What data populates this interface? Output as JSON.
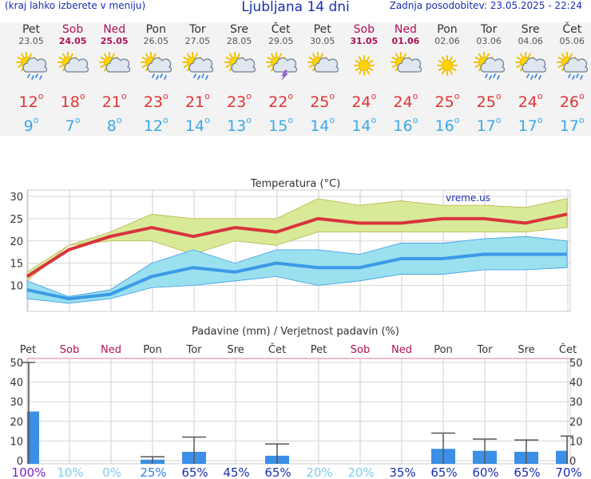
{
  "header": {
    "menu_hint": "(kraj lahko izberete v meniju)",
    "title": "Ljubljana 14 dni",
    "updated": "Zadnja posodobitev: 23.05.2025 - 22:24"
  },
  "colors": {
    "weekday": "#333333",
    "weekend": "#b0105a",
    "tmax": "#e03434",
    "tmin": "#3ca8e8"
  },
  "days": [
    {
      "name": "Pet",
      "date": "23.05",
      "weekend": false,
      "icon": "sun-cloud-rain-icon",
      "tmax": "12",
      "tmin": "9"
    },
    {
      "name": "Sob",
      "date": "24.05",
      "weekend": true,
      "icon": "cloud-sun-icon",
      "tmax": "18",
      "tmin": "7"
    },
    {
      "name": "Ned",
      "date": "25.05",
      "weekend": true,
      "icon": "cloud-sun-icon",
      "tmax": "21",
      "tmin": "8"
    },
    {
      "name": "Pon",
      "date": "26.05",
      "weekend": false,
      "icon": "sun-cloud-rain-icon",
      "tmax": "23",
      "tmin": "12"
    },
    {
      "name": "Tor",
      "date": "27.05",
      "weekend": false,
      "icon": "sun-cloud-rain-icon",
      "tmax": "21",
      "tmin": "14"
    },
    {
      "name": "Sre",
      "date": "28.05",
      "weekend": false,
      "icon": "cloud-sun-icon",
      "tmax": "23",
      "tmin": "13"
    },
    {
      "name": "Čet",
      "date": "29.05",
      "weekend": false,
      "icon": "sun-cloud-storm-icon",
      "tmax": "22",
      "tmin": "15"
    },
    {
      "name": "Pet",
      "date": "30.05",
      "weekend": false,
      "icon": "sun-cloud-icon",
      "tmax": "25",
      "tmin": "14"
    },
    {
      "name": "Sob",
      "date": "31.05",
      "weekend": true,
      "icon": "sun-icon",
      "tmax": "24",
      "tmin": "14"
    },
    {
      "name": "Ned",
      "date": "01.06",
      "weekend": true,
      "icon": "sun-cloud-icon",
      "tmax": "24",
      "tmin": "16"
    },
    {
      "name": "Pon",
      "date": "02.06",
      "weekend": false,
      "icon": "sun-icon",
      "tmax": "25",
      "tmin": "16"
    },
    {
      "name": "Tor",
      "date": "03.06",
      "weekend": false,
      "icon": "sun-cloud-rain-icon",
      "tmax": "25",
      "tmin": "17"
    },
    {
      "name": "Sre",
      "date": "04.06",
      "weekend": false,
      "icon": "sun-cloud-rain-icon",
      "tmax": "24",
      "tmin": "17"
    },
    {
      "name": "Čet",
      "date": "05.06",
      "weekend": false,
      "icon": "sun-cloud-rain-icon",
      "tmax": "26",
      "tmin": "17"
    }
  ],
  "chart_data": [
    {
      "type": "line",
      "title": "Temperatura (°C)",
      "watermark": "vreme.us",
      "ylim": [
        5,
        30
      ],
      "yticks": [
        10,
        15,
        20,
        25,
        30
      ],
      "grid": true,
      "series": [
        {
          "values": [
            12,
            18,
            21,
            23,
            21,
            23,
            22,
            25,
            24,
            24,
            25,
            25,
            24,
            26
          ],
          "color": "#d8343d",
          "band": [
            [
              11,
              19,
              20,
              20,
              17,
              20,
              19,
              22,
              22,
              22,
              22,
              22,
              22,
              23
            ],
            [
              13,
              19,
              22,
              26,
              25,
              25,
              25,
              29.5,
              28,
              29,
              28,
              28,
              27.5,
              29.5
            ]
          ],
          "band_color": "#d8ea98"
        },
        {
          "values": [
            9,
            7,
            8,
            12,
            14,
            13,
            15,
            14,
            14,
            16,
            16,
            17,
            17,
            17
          ],
          "color": "#3b9ae6",
          "band": [
            [
              7,
              6,
              7,
              9.5,
              10,
              11,
              12,
              10,
              11,
              12.5,
              12.5,
              13.5,
              13.5,
              14
            ],
            [
              11,
              7.5,
              9,
              15,
              18,
              15,
              18,
              18,
              17,
              19.5,
              19.5,
              20.5,
              21,
              20
            ]
          ],
          "band_color": "#9ae0ee"
        }
      ]
    },
    {
      "type": "bar",
      "title": "Padavine (mm) / Verjetnost padavin (%)",
      "ylim": [
        0,
        50
      ],
      "yticks": [
        0,
        10,
        20,
        30,
        40,
        50
      ],
      "values": [
        25,
        0,
        0,
        0.5,
        4.5,
        0,
        2.5,
        0,
        0,
        0,
        6,
        5,
        4.5,
        5
      ],
      "error_max": [
        50,
        0,
        0,
        2,
        12,
        0,
        8.5,
        0,
        0,
        0,
        14,
        11,
        10.5,
        12.5
      ],
      "probabilities": [
        "100%",
        "10%",
        "0%",
        "25%",
        "65%",
        "45%",
        "65%",
        "20%",
        "20%",
        "35%",
        "65%",
        "60%",
        "65%",
        "70%"
      ],
      "bar_color": "#3b8fe6"
    }
  ]
}
